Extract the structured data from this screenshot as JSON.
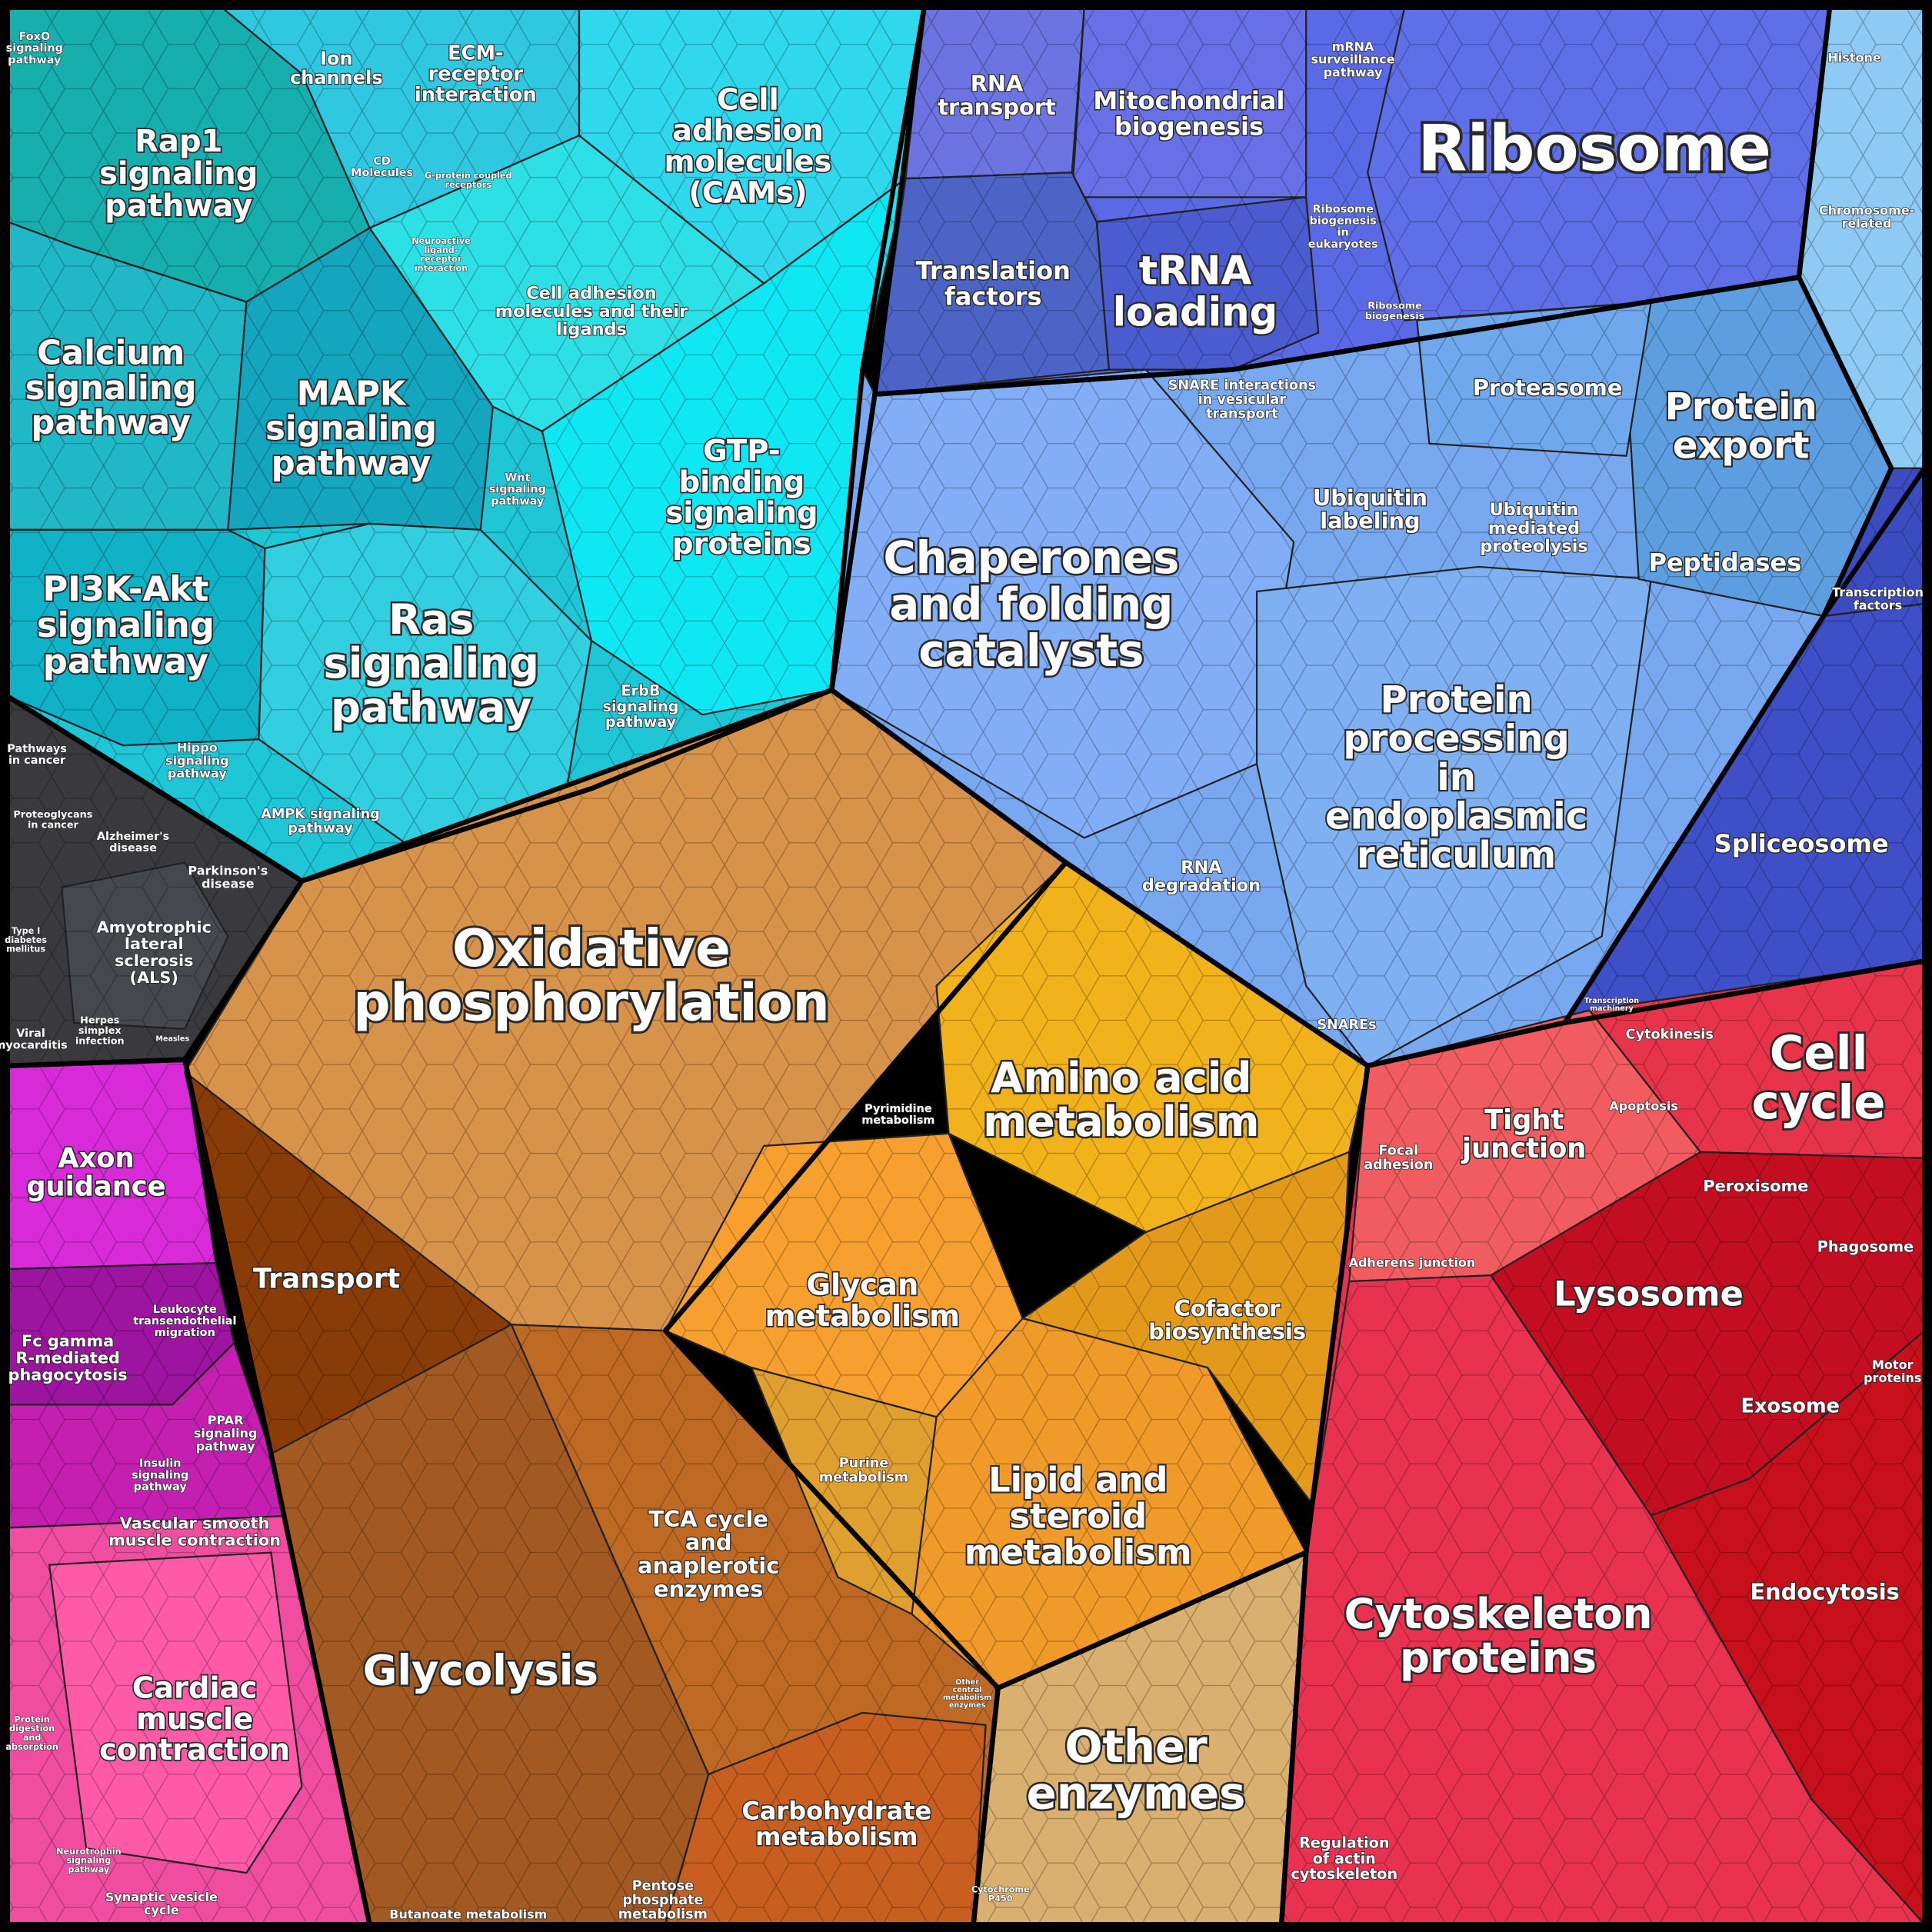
{
  "nodes": [
    {
      "lines": [
        "FoxO",
        "signaling",
        "pathway"
      ]
    },
    {
      "lines": [
        "Ion",
        "channels"
      ]
    },
    {
      "lines": [
        "ECM-",
        "receptor",
        "interaction"
      ]
    },
    {
      "lines": [
        "Cell",
        "adhesion",
        "molecules",
        "(CAMs)"
      ]
    },
    {
      "lines": [
        "Rap1",
        "signaling",
        "pathway"
      ]
    },
    {
      "lines": [
        "CD",
        "Molecules"
      ]
    },
    {
      "lines": [
        "G-protein coupled",
        "receptors"
      ]
    },
    {
      "lines": [
        "Neuroactive",
        "ligand-",
        "receptor",
        "interaction"
      ]
    },
    {
      "lines": [
        "Cell adhesion",
        "molecules and their",
        "ligands"
      ]
    },
    {
      "lines": [
        "Calcium",
        "signaling",
        "pathway"
      ]
    },
    {
      "lines": [
        "MAPK",
        "signaling",
        "pathway"
      ]
    },
    {
      "lines": [
        "GTP-",
        "binding",
        "signaling",
        "proteins"
      ]
    },
    {
      "lines": [
        "Wnt",
        "signaling",
        "pathway"
      ]
    },
    {
      "lines": [
        "PI3K-Akt",
        "signaling",
        "pathway"
      ]
    },
    {
      "lines": [
        "Ras",
        "signaling",
        "pathway"
      ]
    },
    {
      "lines": [
        "ErbB",
        "signaling",
        "pathway"
      ]
    },
    {
      "lines": [
        "Hippo",
        "signaling",
        "pathway"
      ]
    },
    {
      "lines": [
        "AMPK signaling",
        "pathway"
      ]
    },
    {
      "lines": [
        "Pathways",
        "in cancer"
      ]
    },
    {
      "lines": [
        "Proteoglycans",
        "in cancer"
      ]
    },
    {
      "lines": [
        "Alzheimer's",
        "disease"
      ]
    },
    {
      "lines": [
        "Parkinson's",
        "disease"
      ]
    },
    {
      "lines": [
        "Amyotrophic",
        "lateral",
        "sclerosis",
        "(ALS)"
      ]
    },
    {
      "lines": [
        "Type I",
        "diabetes",
        "mellitus"
      ]
    },
    {
      "lines": [
        "Viral",
        "myocarditis"
      ]
    },
    {
      "lines": [
        "Herpes",
        "simplex",
        "infection"
      ]
    },
    {
      "lines": [
        "Measles"
      ]
    },
    {
      "lines": [
        "Axon",
        "guidance"
      ]
    },
    {
      "lines": [
        "Fc gamma",
        "R-mediated",
        "phagocytosis"
      ]
    },
    {
      "lines": [
        "Leukocyte",
        "transendothelial",
        "migration"
      ]
    },
    {
      "lines": [
        "PPAR",
        "signaling",
        "pathway"
      ]
    },
    {
      "lines": [
        "Insulin",
        "signaling",
        "pathway"
      ]
    },
    {
      "lines": [
        "Vascular smooth",
        "muscle contraction"
      ]
    },
    {
      "lines": [
        "Cardiac",
        "muscle",
        "contraction"
      ]
    },
    {
      "lines": [
        "Protein",
        "digestion",
        "and",
        "absorption"
      ]
    },
    {
      "lines": [
        "Synaptic vesicle",
        "cycle"
      ]
    },
    {
      "lines": [
        "Neurotrophin",
        "signaling",
        "pathway"
      ]
    },
    {
      "lines": [
        "Oxidative",
        "phosphorylation"
      ]
    },
    {
      "lines": [
        "Transport"
      ]
    },
    {
      "lines": [
        "Glycolysis"
      ]
    },
    {
      "lines": [
        "TCA cycle",
        "and",
        "anaplerotic",
        "enzymes"
      ]
    },
    {
      "lines": [
        "Carbohydrate",
        "metabolism"
      ]
    },
    {
      "lines": [
        "Pentose",
        "phosphate",
        "metabolism"
      ]
    },
    {
      "lines": [
        "Butanoate metabolism"
      ]
    },
    {
      "lines": [
        "Other",
        "central",
        "metabolism",
        "enzymes"
      ]
    },
    {
      "lines": [
        "Amino acid",
        "metabolism"
      ]
    },
    {
      "lines": [
        "Pyrimidine",
        "metabolism"
      ]
    },
    {
      "lines": [
        "Glycan",
        "metabolism"
      ]
    },
    {
      "lines": [
        "Cofactor",
        "biosynthesis"
      ]
    },
    {
      "lines": [
        "Purine",
        "metabolism"
      ]
    },
    {
      "lines": [
        "Lipid and",
        "steroid",
        "metabolism"
      ]
    },
    {
      "lines": [
        "Other",
        "enzymes"
      ]
    },
    {
      "lines": [
        "Cytochrome",
        "P450"
      ]
    },
    {
      "lines": [
        "RNA",
        "transport"
      ]
    },
    {
      "lines": [
        "Mitochondrial",
        "biogenesis"
      ]
    },
    {
      "lines": [
        "mRNA",
        "surveillance",
        "pathway"
      ]
    },
    {
      "lines": [
        "Ribosome"
      ]
    },
    {
      "lines": [
        "Histone"
      ]
    },
    {
      "lines": [
        "Translation",
        "factors"
      ]
    },
    {
      "lines": [
        "tRNA",
        "loading"
      ]
    },
    {
      "lines": [
        "Ribosome",
        "biogenesis",
        "in",
        "eukaryotes"
      ]
    },
    {
      "lines": [
        "Ribosome",
        "biogenesis"
      ]
    },
    {
      "lines": [
        "Chromosome-",
        "related"
      ]
    },
    {
      "lines": [
        "SNARE interactions",
        "in vesicular",
        "transport"
      ]
    },
    {
      "lines": [
        "Proteasome"
      ]
    },
    {
      "lines": [
        "Protein",
        "export"
      ]
    },
    {
      "lines": [
        "Chaperones",
        "and folding",
        "catalysts"
      ]
    },
    {
      "lines": [
        "Ubiquitin",
        "labeling"
      ]
    },
    {
      "lines": [
        "Ubiquitin",
        "mediated",
        "proteolysis"
      ]
    },
    {
      "lines": [
        "Peptidases"
      ]
    },
    {
      "lines": [
        "Transcription",
        "factors"
      ]
    },
    {
      "lines": [
        "Protein",
        "processing",
        "in",
        "endoplasmic",
        "reticulum"
      ]
    },
    {
      "lines": [
        "RNA",
        "degradation"
      ]
    },
    {
      "lines": [
        "Spliceosome"
      ]
    },
    {
      "lines": [
        "SNAREs"
      ]
    },
    {
      "lines": [
        "Transcription",
        "machinery"
      ]
    },
    {
      "lines": [
        "Cytokinesis"
      ]
    },
    {
      "lines": [
        "Cell",
        "cycle"
      ]
    },
    {
      "lines": [
        "Apoptosis"
      ]
    },
    {
      "lines": [
        "Focal",
        "adhesion"
      ]
    },
    {
      "lines": [
        "Tight",
        "junction"
      ]
    },
    {
      "lines": [
        "Peroxisome"
      ]
    },
    {
      "lines": [
        "Phagosome"
      ]
    },
    {
      "lines": [
        "Adherens junction"
      ]
    },
    {
      "lines": [
        "Lysosome"
      ]
    },
    {
      "lines": [
        "Motor",
        "proteins"
      ]
    },
    {
      "lines": [
        "Exosome"
      ]
    },
    {
      "lines": [
        "Endocytosis"
      ]
    },
    {
      "lines": [
        "Cytoskeleton",
        "proteins"
      ]
    },
    {
      "lines": [
        "Regulation",
        "of actin",
        "cytoskeleton"
      ]
    }
  ]
}
